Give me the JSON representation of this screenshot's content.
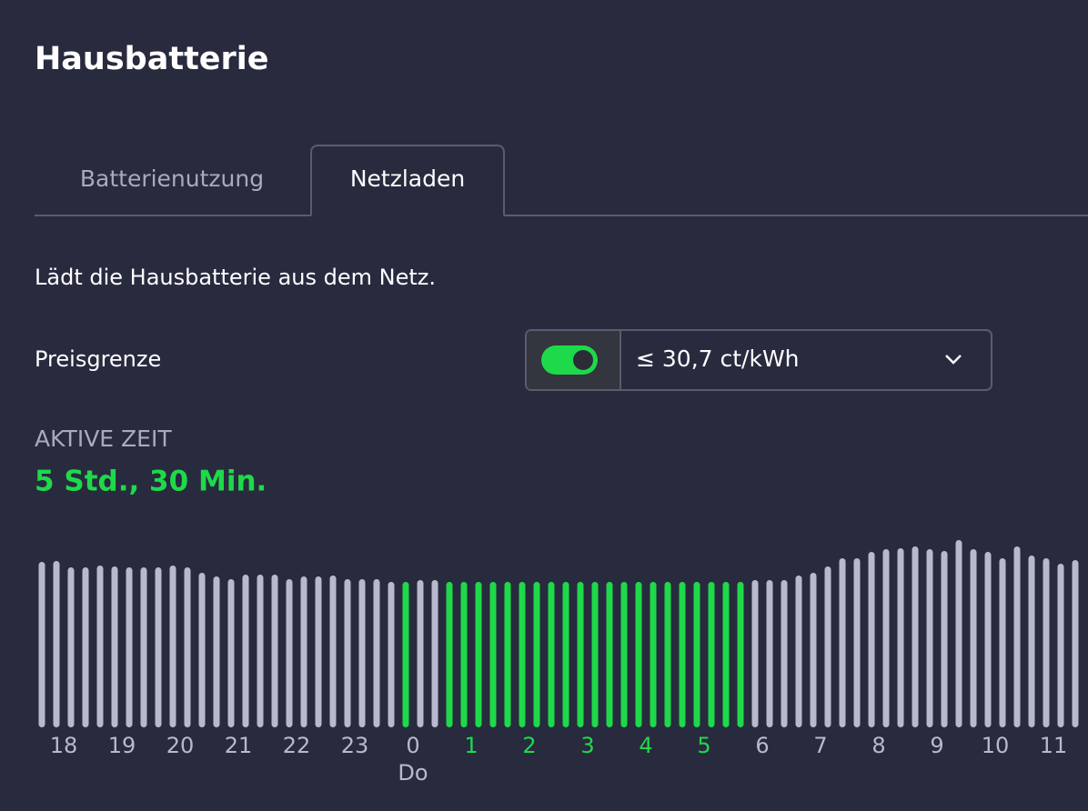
{
  "header": {
    "title": "Hausbatterie"
  },
  "tabs": [
    "Batterienutzung",
    "Netzladen"
  ],
  "description": "Lädt die Hausbatterie aus dem Netz.",
  "price_limit": {
    "label": "Preisgrenze",
    "value": "≤ 30,7 ct/kWh"
  },
  "active_time": {
    "label": "AKTIVE ZEIT",
    "value": "5 Std., 30 Min."
  },
  "chart_data": {
    "type": "bar",
    "categories": [
      "18",
      null,
      null,
      null,
      "19",
      null,
      null,
      null,
      "20",
      null,
      null,
      null,
      "21",
      null,
      null,
      null,
      "22",
      null,
      null,
      null,
      "23",
      null,
      null,
      null,
      "0",
      null,
      null,
      null,
      "1",
      null,
      null,
      null,
      "2",
      null,
      null,
      null,
      "3",
      null,
      null,
      null,
      "4",
      null,
      null,
      null,
      "5",
      null,
      null,
      null,
      "6",
      null,
      null,
      null,
      "7",
      null,
      null,
      null,
      "8",
      null,
      null,
      null,
      "9",
      null,
      null,
      null,
      "10",
      null,
      null,
      null,
      "11",
      null,
      null,
      null
    ],
    "values": [
      182,
      183,
      176,
      176,
      178,
      177,
      176,
      176,
      176,
      178,
      176,
      170,
      166,
      163,
      168,
      168,
      168,
      163,
      166,
      166,
      167,
      163,
      163,
      163,
      160,
      160,
      162,
      162,
      160,
      160,
      160,
      160,
      160,
      160,
      160,
      160,
      160,
      160,
      160,
      160,
      160,
      160,
      160,
      160,
      160,
      160,
      160,
      160,
      160,
      162,
      162,
      162,
      167,
      170,
      177,
      186,
      186,
      193,
      196,
      197,
      199,
      196,
      194,
      206,
      196,
      193,
      186,
      199,
      189,
      186,
      180,
      184
    ],
    "colors": [
      "#b9b9cd",
      "#b9b9cd",
      "#b9b9cd",
      "#b9b9cd",
      "#b9b9cd",
      "#b9b9cd",
      "#b9b9cd",
      "#b9b9cd",
      "#b9b9cd",
      "#b9b9cd",
      "#b9b9cd",
      "#b9b9cd",
      "#b9b9cd",
      "#b9b9cd",
      "#b9b9cd",
      "#b9b9cd",
      "#b9b9cd",
      "#b9b9cd",
      "#b9b9cd",
      "#b9b9cd",
      "#b9b9cd",
      "#b9b9cd",
      "#b9b9cd",
      "#b9b9cd",
      "#b9b9cd",
      "#1ed94a",
      "#b9b9cd",
      "#b9b9cd",
      "#1ed94a",
      "#1ed94a",
      "#1ed94a",
      "#1ed94a",
      "#1ed94a",
      "#1ed94a",
      "#1ed94a",
      "#1ed94a",
      "#1ed94a",
      "#1ed94a",
      "#1ed94a",
      "#1ed94a",
      "#1ed94a",
      "#1ed94a",
      "#1ed94a",
      "#1ed94a",
      "#1ed94a",
      "#1ed94a",
      "#1ed94a",
      "#1ed94a",
      "#1ed94a",
      "#b9b9cd",
      "#b9b9cd",
      "#b9b9cd",
      "#b9b9cd",
      "#b9b9cd",
      "#b9b9cd",
      "#b9b9cd",
      "#b9b9cd",
      "#b9b9cd",
      "#b9b9cd",
      "#b9b9cd",
      "#b9b9cd",
      "#b9b9cd",
      "#b9b9cd",
      "#b9b9cd",
      "#b9b9cd",
      "#b9b9cd",
      "#b9b9cd",
      "#b9b9cd",
      "#b9b9cd",
      "#b9b9cd",
      "#b9b9cd",
      "#b9b9cd"
    ],
    "day_label": "Do",
    "ylim": [
      0,
      210
    ]
  }
}
